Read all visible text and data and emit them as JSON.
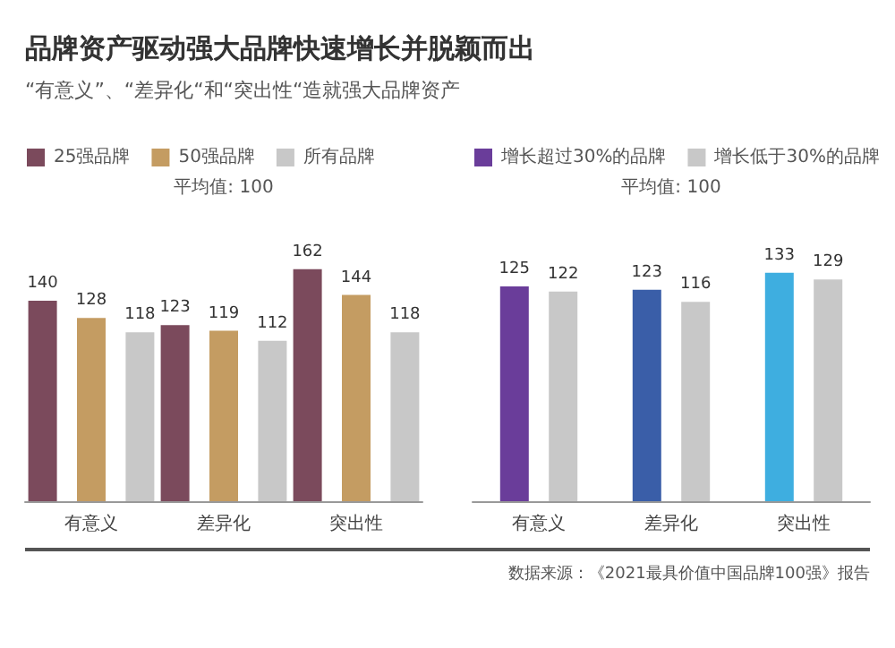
{
  "chart_data": [
    {
      "type": "bar",
      "title": "品牌资产驱动强大品牌快速增长并脱颖而出",
      "subtitle": "“有意义”、“差异化“和“突出性“造就强大品牌资产",
      "categories": [
        "有意义",
        "差异化",
        "突出性"
      ],
      "series": [
        {
          "name": "25强品牌",
          "color": "#7b4a5c",
          "values": [
            140,
            123,
            162
          ]
        },
        {
          "name": "50强品牌",
          "color": "#c49c62",
          "values": [
            128,
            119,
            144
          ]
        },
        {
          "name": "所有品牌",
          "color": "#c8c8c8",
          "values": [
            118,
            112,
            118
          ]
        }
      ],
      "data_labels": true,
      "legend": "top",
      "grid": false,
      "annotations": [
        "平均值: 100"
      ]
    },
    {
      "type": "bar",
      "categories": [
        "有意义",
        "差异化",
        "突出性"
      ],
      "series": [
        {
          "name": "增长超过30%的品牌",
          "color": "#6a3d9a",
          "colors": [
            "#6a3d9a",
            "#3a5ea8",
            "#3eaee0"
          ],
          "values": [
            125,
            123,
            133
          ]
        },
        {
          "name": "增长低于30%的品牌",
          "color": "#c8c8c8",
          "values": [
            122,
            116,
            129
          ]
        }
      ],
      "data_labels": true,
      "legend": "top",
      "grid": false,
      "annotations": [
        "平均值: 100",
        "数据来源：《2021最具价值中国品牌100强》报告"
      ]
    }
  ]
}
